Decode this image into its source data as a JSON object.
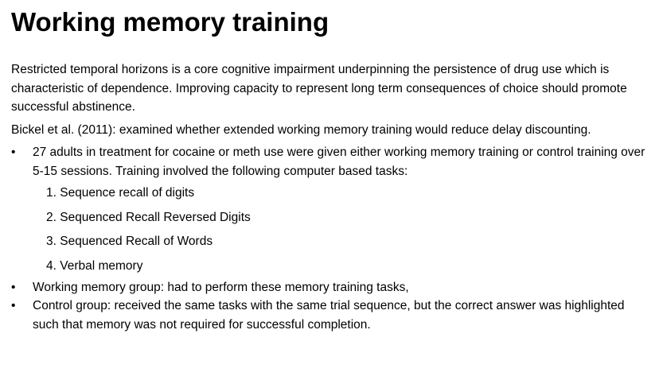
{
  "slide": {
    "title": "Working memory training",
    "paragraphs": [
      "Restricted temporal horizons is a core cognitive impairment underpinning the persistence of drug use which is characteristic of dependence.  Improving capacity to represent long term consequences of choice should promote successful abstinence.",
      "Bickel et al. (2011): examined whether extended working memory training would reduce delay discounting."
    ],
    "bullet_char": "•",
    "bullet_1": "27 adults in treatment for cocaine or meth use were given either working memory training or control training over 5-15 sessions. Training involved the following computer based tasks:",
    "tasks": [
      "1. Sequence recall of digits",
      "2. Sequenced Recall Reversed Digits",
      "3. Sequenced Recall of Words",
      "4. Verbal memory"
    ],
    "bullets_after": [
      "Working memory group: had to perform these memory training tasks,",
      "Control group: received the same tasks with the same trial sequence, but the correct answer was highlighted such that memory was not required for successful completion."
    ]
  }
}
